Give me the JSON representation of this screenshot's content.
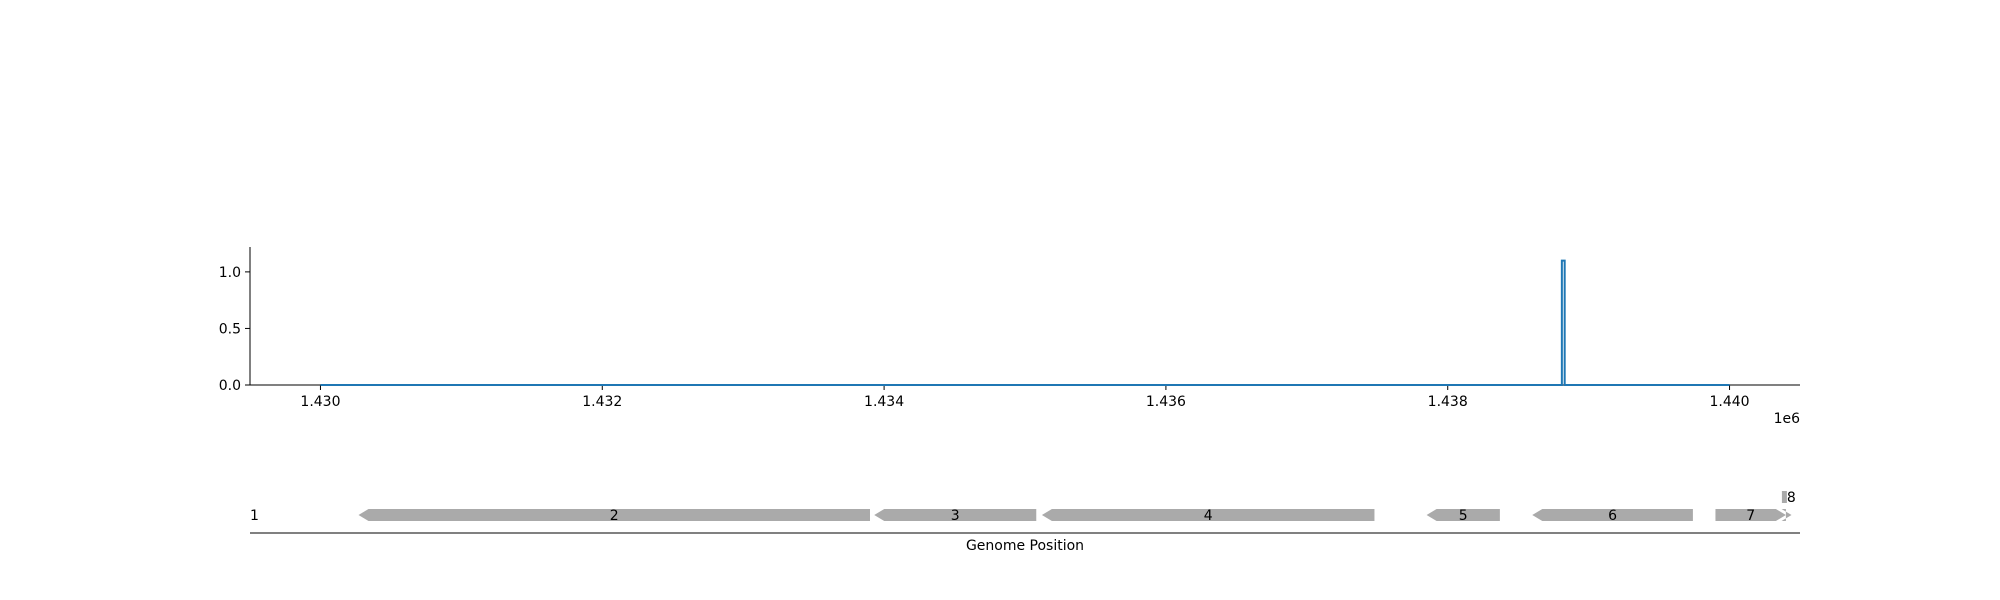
{
  "chart_data": [
    {
      "type": "line",
      "title": "",
      "xlabel": "",
      "ylabel": "",
      "x_offset_label": "1e6",
      "xlim": [
        1429500,
        1440500
      ],
      "ylim": [
        0,
        1.22
      ],
      "x_ticks": [
        1430000,
        1432000,
        1434000,
        1436000,
        1438000,
        1440000
      ],
      "x_tick_labels": [
        "1.430",
        "1.432",
        "1.434",
        "1.436",
        "1.438",
        "1.440"
      ],
      "y_ticks": [
        0,
        0.5,
        1.0
      ],
      "y_tick_labels": [
        "0.0",
        "0.5",
        "1.0"
      ],
      "grid": false,
      "series": [
        {
          "color": "#1f77b4",
          "x": [
            1430000,
            1438810,
            1438810,
            1438830,
            1438830,
            1440000
          ],
          "y": [
            0,
            0,
            1.1,
            1.1,
            0,
            0
          ]
        }
      ]
    },
    {
      "type": "gene_track",
      "xlabel": "Genome Position",
      "xlim": [
        1429500,
        1440500
      ],
      "color": "#aaaaaa",
      "genes": [
        {
          "label": "1",
          "start": 1429500,
          "end": 1429500,
          "strand": "+"
        },
        {
          "label": "2",
          "start": 1430270,
          "end": 1433900,
          "strand": "-"
        },
        {
          "label": "3",
          "start": 1433930,
          "end": 1435080,
          "strand": "-"
        },
        {
          "label": "4",
          "start": 1435120,
          "end": 1437480,
          "strand": "-"
        },
        {
          "label": "5",
          "start": 1437850,
          "end": 1438370,
          "strand": "-"
        },
        {
          "label": "6",
          "start": 1438600,
          "end": 1439740,
          "strand": "-"
        },
        {
          "label": "7",
          "start": 1439900,
          "end": 1440400,
          "strand": "+"
        },
        {
          "label": "8",
          "start": 1440400,
          "end": 1440440,
          "strand": "+"
        }
      ]
    }
  ]
}
